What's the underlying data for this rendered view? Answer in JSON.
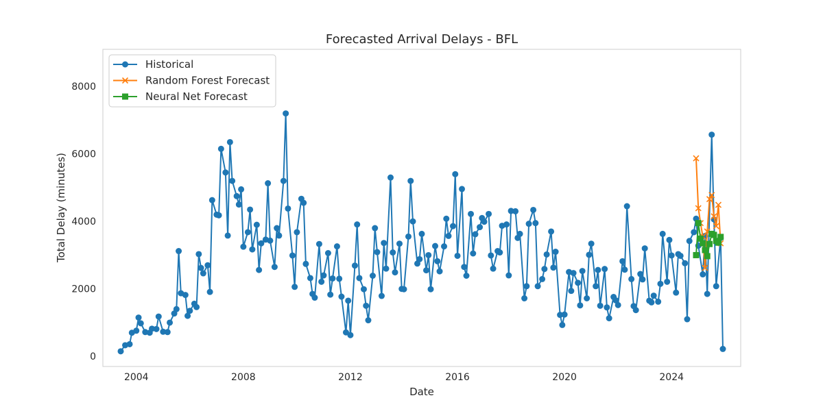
{
  "chart_data": {
    "type": "line",
    "title": "Forecasted Arrival Delays - BFL",
    "xlabel": "Date",
    "ylabel": "Total Delay (minutes)",
    "x_ticks": [
      "2004",
      "2008",
      "2012",
      "2016",
      "2020",
      "2024"
    ],
    "y_ticks": [
      "0",
      "2000",
      "4000",
      "6000",
      "8000"
    ],
    "xlim": [
      "2002-10",
      "2026-08"
    ],
    "ylim": [
      -300,
      9100
    ],
    "grid": false,
    "legend_position": "top-left",
    "series": [
      {
        "name": "Historical",
        "color": "#1f77b4",
        "marker": "circle",
        "points": [
          [
            "2003-06",
            150
          ],
          [
            "2003-08",
            330
          ],
          [
            "2003-10",
            360
          ],
          [
            "2003-11",
            700
          ],
          [
            "2004-01",
            760
          ],
          [
            "2004-02",
            1150
          ],
          [
            "2004-03",
            980
          ],
          [
            "2004-05",
            720
          ],
          [
            "2004-07",
            700
          ],
          [
            "2004-08",
            820
          ],
          [
            "2004-10",
            810
          ],
          [
            "2004-11",
            1180
          ],
          [
            "2005-01",
            730
          ],
          [
            "2005-03",
            720
          ],
          [
            "2005-04",
            1000
          ],
          [
            "2005-06",
            1270
          ],
          [
            "2005-07",
            1400
          ],
          [
            "2005-08",
            3120
          ],
          [
            "2005-09",
            1870
          ],
          [
            "2005-11",
            1820
          ],
          [
            "2005-12",
            1200
          ],
          [
            "2006-01",
            1350
          ],
          [
            "2006-03",
            1560
          ],
          [
            "2006-04",
            1460
          ],
          [
            "2006-05",
            3030
          ],
          [
            "2006-06",
            2620
          ],
          [
            "2006-07",
            2460
          ],
          [
            "2006-09",
            2700
          ],
          [
            "2006-10",
            1910
          ],
          [
            "2006-11",
            4630
          ],
          [
            "2007-01",
            4200
          ],
          [
            "2007-02",
            4180
          ],
          [
            "2007-03",
            6150
          ],
          [
            "2007-05",
            5450
          ],
          [
            "2007-06",
            3580
          ],
          [
            "2007-07",
            6350
          ],
          [
            "2007-08",
            5200
          ],
          [
            "2007-10",
            4750
          ],
          [
            "2007-11",
            4500
          ],
          [
            "2007-12",
            4950
          ],
          [
            "2008-01",
            3250
          ],
          [
            "2008-03",
            3680
          ],
          [
            "2008-04",
            4350
          ],
          [
            "2008-05",
            3170
          ],
          [
            "2008-07",
            3900
          ],
          [
            "2008-08",
            2560
          ],
          [
            "2008-09",
            3350
          ],
          [
            "2008-11",
            3460
          ],
          [
            "2008-12",
            5130
          ],
          [
            "2009-01",
            3430
          ],
          [
            "2009-03",
            2650
          ],
          [
            "2009-04",
            3800
          ],
          [
            "2009-05",
            3580
          ],
          [
            "2009-07",
            5200
          ],
          [
            "2009-08",
            7200
          ],
          [
            "2009-09",
            4380
          ],
          [
            "2009-11",
            2990
          ],
          [
            "2009-12",
            2060
          ],
          [
            "2010-01",
            3680
          ],
          [
            "2010-03",
            4670
          ],
          [
            "2010-04",
            4550
          ],
          [
            "2010-05",
            2740
          ],
          [
            "2010-07",
            2320
          ],
          [
            "2010-08",
            1850
          ],
          [
            "2010-09",
            1740
          ],
          [
            "2010-11",
            3330
          ],
          [
            "2010-12",
            2210
          ],
          [
            "2011-01",
            2400
          ],
          [
            "2011-03",
            3060
          ],
          [
            "2011-04",
            1830
          ],
          [
            "2011-05",
            2310
          ],
          [
            "2011-07",
            3260
          ],
          [
            "2011-08",
            2300
          ],
          [
            "2011-09",
            1770
          ],
          [
            "2011-11",
            710
          ],
          [
            "2011-12",
            1650
          ],
          [
            "2012-01",
            630
          ],
          [
            "2012-03",
            2690
          ],
          [
            "2012-04",
            3910
          ],
          [
            "2012-05",
            2320
          ],
          [
            "2012-07",
            1990
          ],
          [
            "2012-08",
            1500
          ],
          [
            "2012-09",
            1070
          ],
          [
            "2012-11",
            2390
          ],
          [
            "2012-12",
            3800
          ],
          [
            "2013-01",
            3090
          ],
          [
            "2013-03",
            1790
          ],
          [
            "2013-04",
            3360
          ],
          [
            "2013-05",
            2600
          ],
          [
            "2013-07",
            5300
          ],
          [
            "2013-08",
            3080
          ],
          [
            "2013-09",
            2490
          ],
          [
            "2013-11",
            3340
          ],
          [
            "2013-12",
            2000
          ],
          [
            "2014-01",
            1990
          ],
          [
            "2014-03",
            3550
          ],
          [
            "2014-04",
            5200
          ],
          [
            "2014-05",
            4000
          ],
          [
            "2014-07",
            2750
          ],
          [
            "2014-08",
            2880
          ],
          [
            "2014-09",
            3630
          ],
          [
            "2014-11",
            2550
          ],
          [
            "2014-12",
            3000
          ],
          [
            "2015-01",
            1990
          ],
          [
            "2015-03",
            3270
          ],
          [
            "2015-04",
            2820
          ],
          [
            "2015-05",
            2520
          ],
          [
            "2015-07",
            3260
          ],
          [
            "2015-08",
            4080
          ],
          [
            "2015-09",
            3570
          ],
          [
            "2015-11",
            3860
          ],
          [
            "2015-12",
            5400
          ],
          [
            "2016-01",
            2980
          ],
          [
            "2016-03",
            4960
          ],
          [
            "2016-04",
            2650
          ],
          [
            "2016-05",
            2390
          ],
          [
            "2016-07",
            4220
          ],
          [
            "2016-08",
            3050
          ],
          [
            "2016-09",
            3620
          ],
          [
            "2016-11",
            3830
          ],
          [
            "2016-12",
            4100
          ],
          [
            "2017-01",
            3990
          ],
          [
            "2017-03",
            4220
          ],
          [
            "2017-04",
            2990
          ],
          [
            "2017-05",
            2600
          ],
          [
            "2017-07",
            3120
          ],
          [
            "2017-08",
            3080
          ],
          [
            "2017-09",
            3870
          ],
          [
            "2017-11",
            3910
          ],
          [
            "2017-12",
            2400
          ],
          [
            "2018-01",
            4310
          ],
          [
            "2018-03",
            4300
          ],
          [
            "2018-04",
            3510
          ],
          [
            "2018-05",
            3630
          ],
          [
            "2018-07",
            1720
          ],
          [
            "2018-08",
            2080
          ],
          [
            "2018-09",
            3930
          ],
          [
            "2018-11",
            4340
          ],
          [
            "2018-12",
            3950
          ],
          [
            "2019-01",
            2080
          ],
          [
            "2019-03",
            2290
          ],
          [
            "2019-04",
            2590
          ],
          [
            "2019-05",
            3020
          ],
          [
            "2019-07",
            3700
          ],
          [
            "2019-08",
            2630
          ],
          [
            "2019-09",
            3100
          ],
          [
            "2019-11",
            1230
          ],
          [
            "2019-12",
            930
          ],
          [
            "2020-01",
            1240
          ],
          [
            "2020-03",
            2500
          ],
          [
            "2020-04",
            1940
          ],
          [
            "2020-05",
            2470
          ],
          [
            "2020-07",
            2180
          ],
          [
            "2020-08",
            1510
          ],
          [
            "2020-09",
            2530
          ],
          [
            "2020-11",
            1720
          ],
          [
            "2020-12",
            3010
          ],
          [
            "2021-01",
            3340
          ],
          [
            "2021-03",
            2080
          ],
          [
            "2021-04",
            2560
          ],
          [
            "2021-05",
            1500
          ],
          [
            "2021-07",
            2590
          ],
          [
            "2021-08",
            1450
          ],
          [
            "2021-09",
            1130
          ],
          [
            "2021-11",
            1760
          ],
          [
            "2021-12",
            1660
          ],
          [
            "2022-01",
            1520
          ],
          [
            "2022-03",
            2820
          ],
          [
            "2022-04",
            2570
          ],
          [
            "2022-05",
            4450
          ],
          [
            "2022-07",
            2290
          ],
          [
            "2022-08",
            1490
          ],
          [
            "2022-09",
            1370
          ],
          [
            "2022-11",
            2440
          ],
          [
            "2022-12",
            2280
          ],
          [
            "2023-01",
            3200
          ],
          [
            "2023-03",
            1650
          ],
          [
            "2023-04",
            1600
          ],
          [
            "2023-05",
            1800
          ],
          [
            "2023-07",
            1620
          ],
          [
            "2023-08",
            2150
          ],
          [
            "2023-09",
            3630
          ],
          [
            "2023-11",
            2210
          ],
          [
            "2023-12",
            3450
          ],
          [
            "2024-01",
            2990
          ],
          [
            "2024-03",
            1890
          ],
          [
            "2024-04",
            3030
          ],
          [
            "2024-05",
            2980
          ],
          [
            "2024-07",
            2760
          ],
          [
            "2024-08",
            1100
          ],
          [
            "2024-09",
            3420
          ],
          [
            "2024-11",
            3680
          ],
          [
            "2024-12",
            4080
          ],
          [
            "2025-01",
            3280
          ],
          [
            "2025-03",
            2430
          ],
          [
            "2025-04",
            3570
          ],
          [
            "2025-05",
            1850
          ],
          [
            "2025-07",
            6570
          ],
          [
            "2025-08",
            4060
          ],
          [
            "2025-09",
            2080
          ],
          [
            "2025-11",
            3510
          ],
          [
            "2025-12",
            220
          ]
        ]
      },
      {
        "name": "Random Forest Forecast",
        "color": "#ff7f0e",
        "marker": "x",
        "points": [
          [
            "2024-12",
            5870
          ],
          [
            "2025-01",
            4390
          ],
          [
            "2025-02",
            3950
          ],
          [
            "2025-03",
            3550
          ],
          [
            "2025-04",
            2620
          ],
          [
            "2025-05",
            3700
          ],
          [
            "2025-06",
            4660
          ],
          [
            "2025-07",
            4780
          ],
          [
            "2025-08",
            4150
          ],
          [
            "2025-09",
            3860
          ],
          [
            "2025-10",
            4490
          ],
          [
            "2025-11",
            3350
          ]
        ]
      },
      {
        "name": "Neural Net Forecast",
        "color": "#2ca02c",
        "marker": "square",
        "points": [
          [
            "2024-12",
            3000
          ],
          [
            "2025-01",
            3950
          ],
          [
            "2025-02",
            3490
          ],
          [
            "2025-03",
            3350
          ],
          [
            "2025-04",
            3150
          ],
          [
            "2025-05",
            2970
          ],
          [
            "2025-06",
            3330
          ],
          [
            "2025-07",
            3630
          ],
          [
            "2025-08",
            3600
          ],
          [
            "2025-09",
            3420
          ],
          [
            "2025-10",
            3370
          ],
          [
            "2025-11",
            3540
          ]
        ]
      }
    ]
  }
}
